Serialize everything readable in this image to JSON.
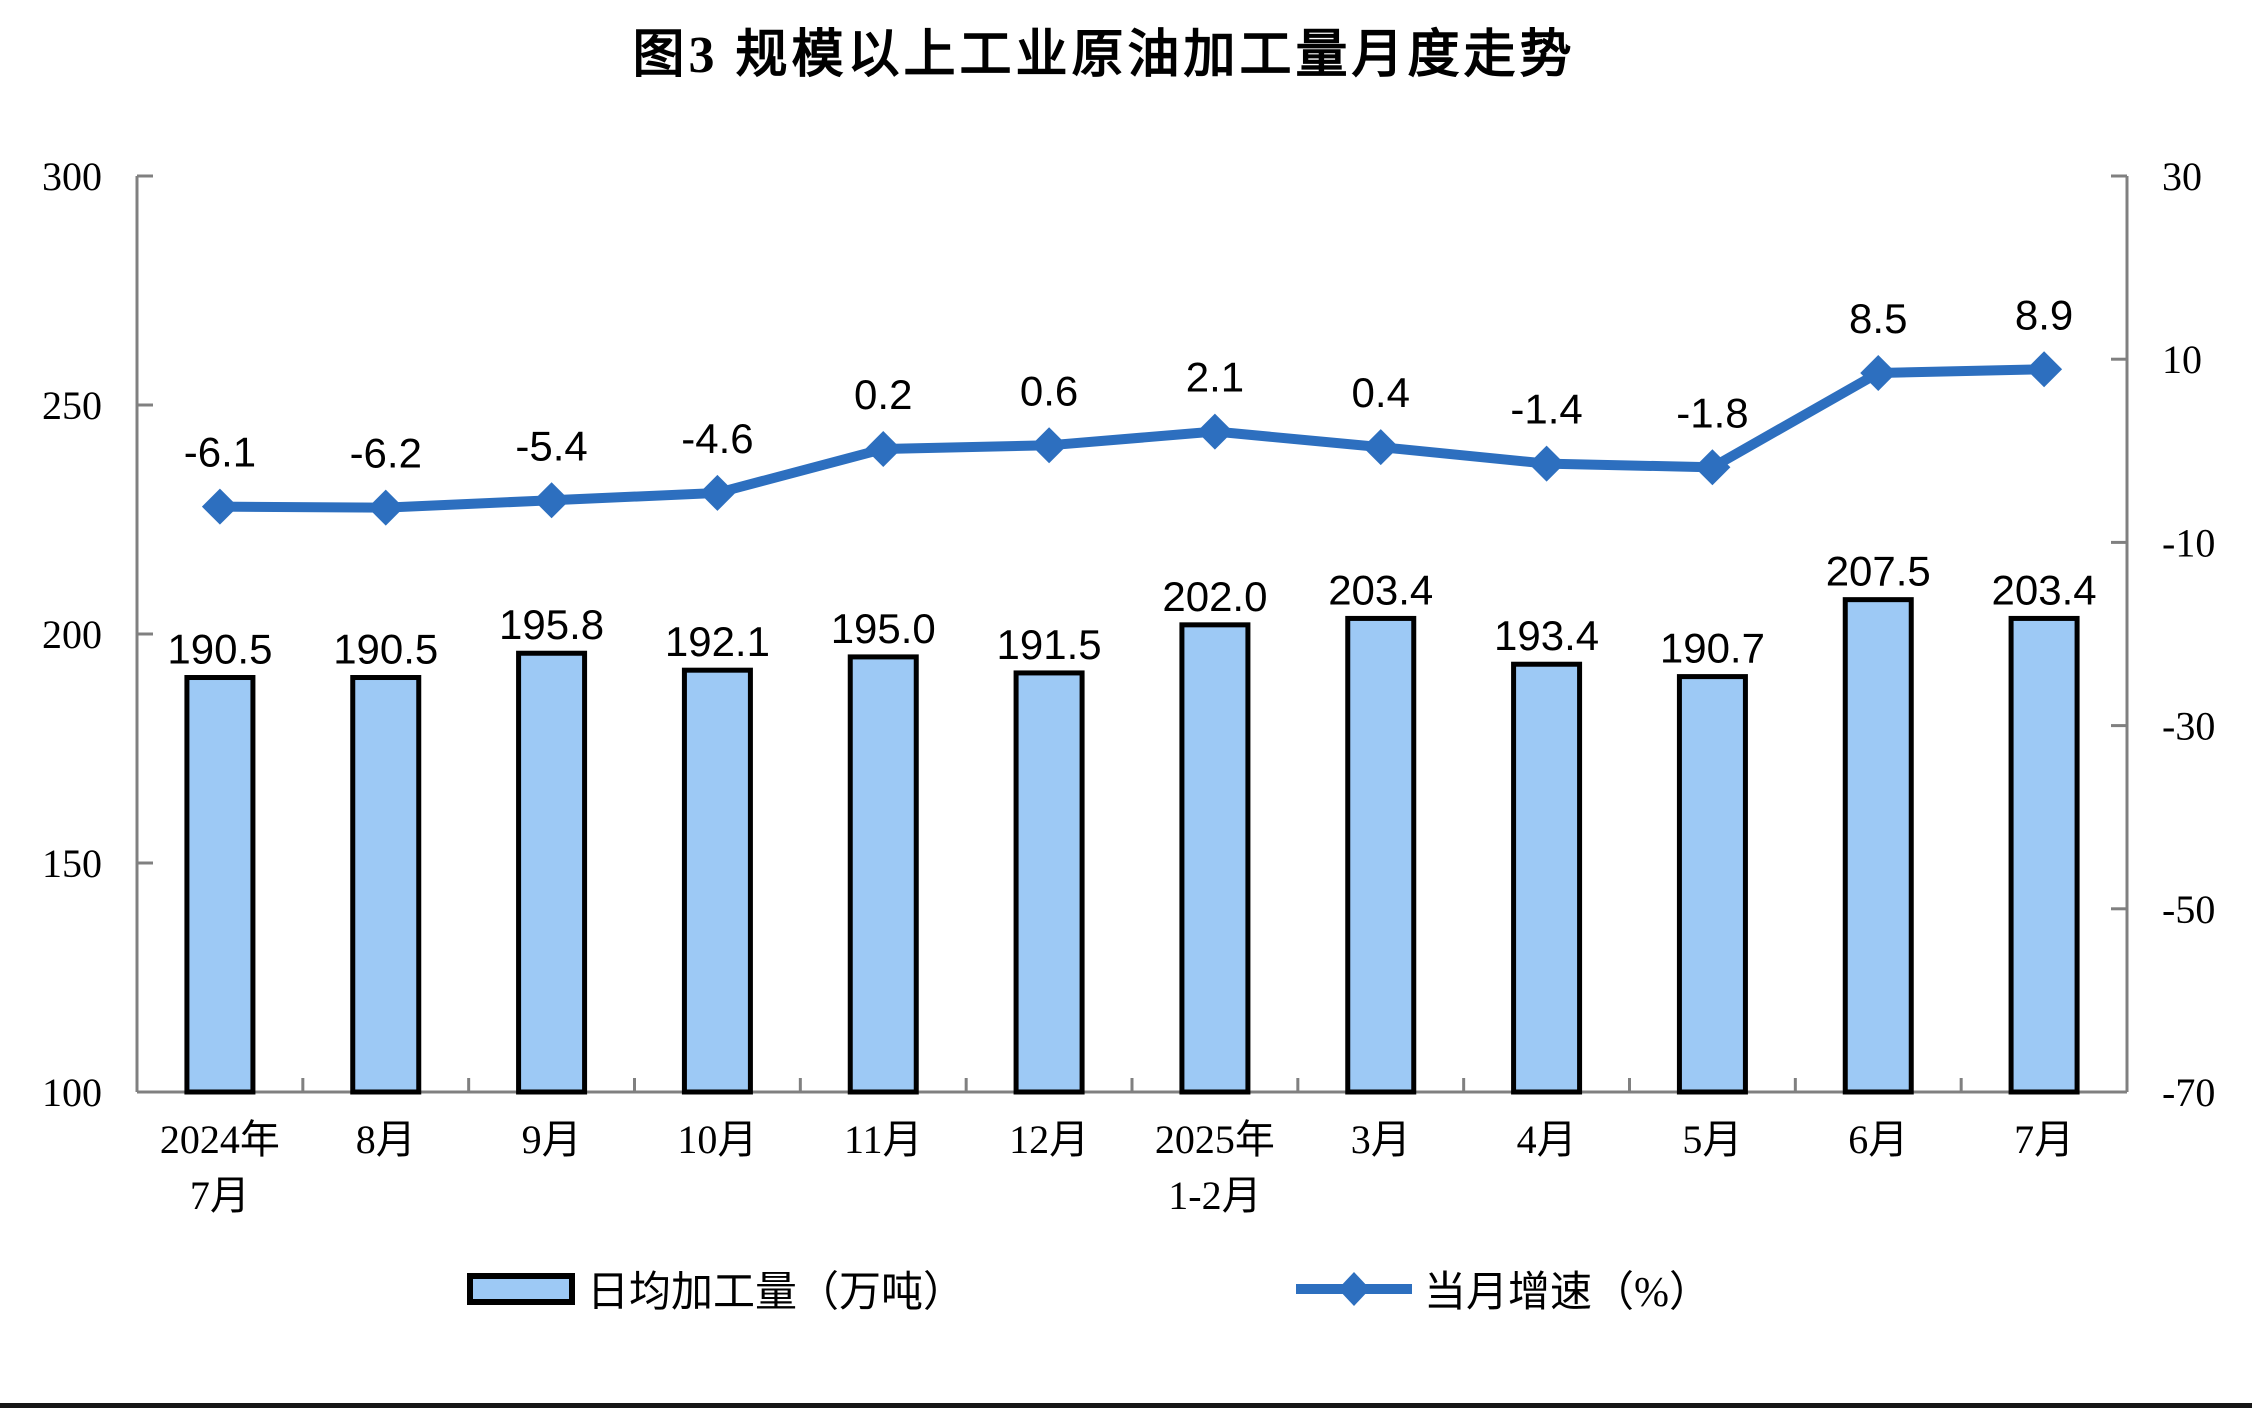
{
  "title": "图3 规模以上工业原油加工量月度走势",
  "legend": {
    "bar_label": "日均加工量（万吨）",
    "line_label": "当月增速（%）"
  },
  "colors": {
    "bar_fill": "#9DC9F5",
    "bar_stroke": "#000000",
    "line_color": "#2D6FBF",
    "axis_color": "#808080",
    "text_color": "#000000"
  },
  "chart_data": {
    "type": "bar",
    "subtype": "bar-line-combo",
    "title": "图3 规模以上工业原油加工量月度走势",
    "categories": [
      [
        "2024年",
        "7月"
      ],
      [
        "8月"
      ],
      [
        "9月"
      ],
      [
        "10月"
      ],
      [
        "11月"
      ],
      [
        "12月"
      ],
      [
        "2025年",
        "1-2月"
      ],
      [
        "3月"
      ],
      [
        "4月"
      ],
      [
        "5月"
      ],
      [
        "6月"
      ],
      [
        "7月"
      ]
    ],
    "series": [
      {
        "name": "日均加工量（万吨）",
        "type": "bar",
        "axis": "left",
        "values": [
          190.5,
          190.5,
          195.8,
          192.1,
          195.0,
          191.5,
          202.0,
          203.4,
          193.4,
          190.7,
          207.5,
          203.4
        ]
      },
      {
        "name": "当月增速（%）",
        "type": "line",
        "axis": "right",
        "marker": "diamond",
        "values": [
          -6.1,
          -6.2,
          -5.4,
          -4.6,
          0.2,
          0.6,
          2.1,
          0.4,
          -1.4,
          -1.8,
          8.5,
          8.9
        ]
      }
    ],
    "left_axis": {
      "min": 100,
      "max": 300,
      "tick_step": 50,
      "ticks": [
        300,
        250,
        200,
        150,
        100
      ]
    },
    "right_axis": {
      "min": -70,
      "max": 30,
      "tick_step": 20,
      "ticks": [
        30,
        10,
        -10,
        -30,
        -50,
        -70
      ]
    },
    "grid": false,
    "data_labels": true,
    "legend_position": "bottom"
  }
}
